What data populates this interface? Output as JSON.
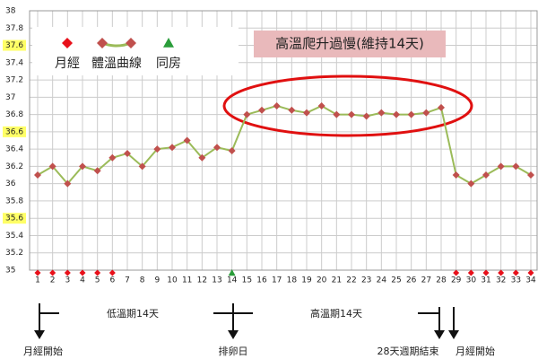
{
  "chart_data": {
    "type": "line",
    "annotation": "高溫爬升過慢(維持14天)",
    "categories": [
      "1",
      "2",
      "3",
      "4",
      "5",
      "6",
      "7",
      "8",
      "9",
      "10",
      "11",
      "12",
      "13",
      "14",
      "15",
      "16",
      "17",
      "18",
      "19",
      "20",
      "21",
      "22",
      "23",
      "24",
      "25",
      "26",
      "27",
      "28",
      "29",
      "30",
      "31",
      "32",
      "33",
      "34"
    ],
    "series": [
      {
        "name": "月經",
        "color": "#e8101a",
        "marker": "diamond",
        "values": [
          35,
          35,
          35,
          35,
          35,
          35,
          null,
          null,
          null,
          null,
          null,
          null,
          null,
          null,
          null,
          null,
          null,
          null,
          null,
          null,
          null,
          null,
          null,
          null,
          null,
          null,
          null,
          null,
          35,
          35,
          35,
          35,
          35,
          35
        ]
      },
      {
        "name": "體溫曲線",
        "color": "#9bbb59",
        "marker_color": "#c0504d",
        "marker": "line",
        "values": [
          36.1,
          36.2,
          36.0,
          36.2,
          36.15,
          36.3,
          36.35,
          36.2,
          36.4,
          36.42,
          36.5,
          36.3,
          36.42,
          36.38,
          36.8,
          36.85,
          36.9,
          36.85,
          36.82,
          36.9,
          36.8,
          36.8,
          36.78,
          36.82,
          36.8,
          36.8,
          36.82,
          36.88,
          36.1,
          36.0,
          36.1,
          36.2,
          36.2,
          36.1
        ]
      },
      {
        "name": "同房",
        "color": "#2a9d3a",
        "marker": "triangle",
        "values": [
          null,
          null,
          null,
          null,
          null,
          null,
          null,
          null,
          null,
          null,
          null,
          null,
          null,
          35,
          null,
          null,
          null,
          null,
          null,
          null,
          null,
          null,
          null,
          null,
          null,
          null,
          null,
          null,
          null,
          null,
          null,
          null,
          null,
          null
        ]
      }
    ],
    "ylim": [
      35,
      38
    ],
    "yticks": [
      35,
      35.2,
      35.4,
      35.6,
      35.8,
      36,
      36.2,
      36.4,
      36.6,
      36.8,
      37,
      37.2,
      37.4,
      37.6,
      37.8,
      38
    ],
    "highlighted_yticks": [
      35.6,
      36.6,
      37.6
    ],
    "grid": true,
    "timeline": [
      "月經開始",
      "低溫期14天",
      "排卵日",
      "高溫期14天",
      "28天週期結束",
      "月經開始"
    ]
  }
}
